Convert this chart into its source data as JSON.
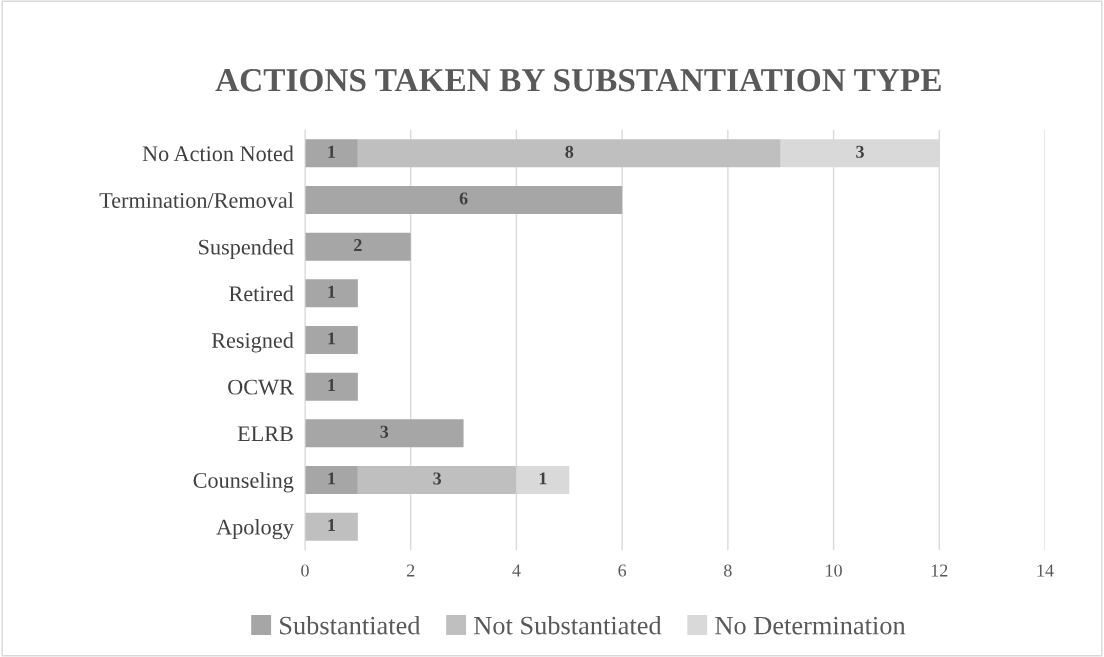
{
  "chart_data": {
    "type": "bar",
    "orientation": "horizontal",
    "stacked": true,
    "title": "ACTIONS TAKEN BY SUBSTANTIATION TYPE",
    "categories": [
      "No Action Noted",
      "Termination/Removal",
      "Suspended",
      "Retired",
      "Resigned",
      "OCWR",
      "ELRB",
      "Counseling",
      "Apology"
    ],
    "series": [
      {
        "name": "Substantiated",
        "color": "#a6a6a6",
        "values": [
          1,
          6,
          2,
          1,
          1,
          1,
          3,
          1,
          null
        ]
      },
      {
        "name": "Not Substantiated",
        "color": "#bfbfbf",
        "values": [
          8,
          null,
          null,
          null,
          null,
          null,
          null,
          3,
          1
        ]
      },
      {
        "name": "No Determination",
        "color": "#d9d9d9",
        "values": [
          3,
          null,
          null,
          null,
          null,
          null,
          null,
          1,
          null
        ]
      }
    ],
    "xlim": [
      0,
      14
    ],
    "xticks": [
      0,
      2,
      4,
      6,
      8,
      10,
      12,
      14
    ],
    "grid": "x",
    "legend": "bottom",
    "data_labels": true
  }
}
